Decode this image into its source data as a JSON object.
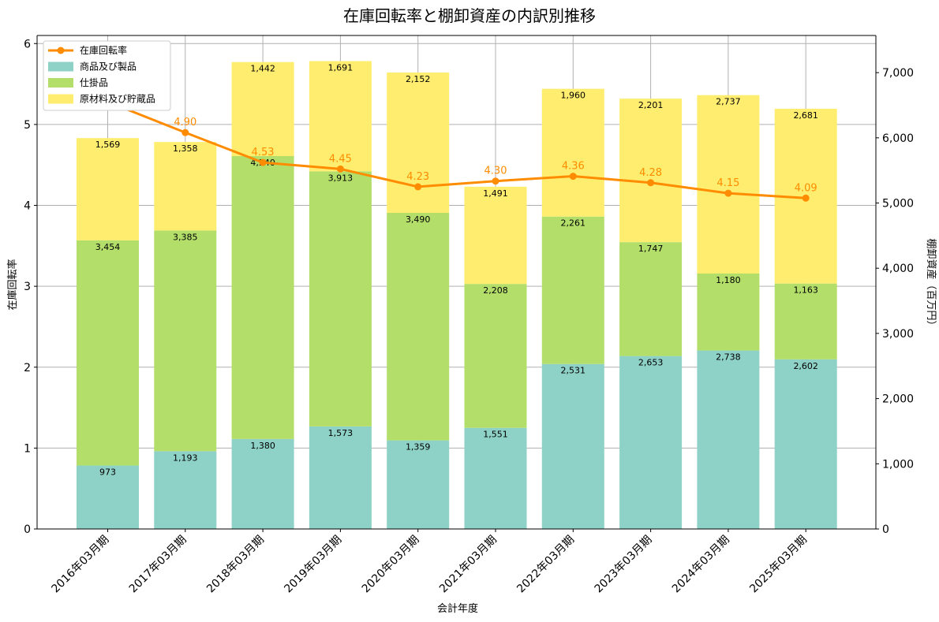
{
  "chart_data": {
    "type": "bar",
    "title": "在庫回転率と棚卸資産の内訳別推移",
    "xlabel": "会計年度",
    "ylabel_left": "在庫回転率",
    "ylabel_right": "棚卸資産（百万円）",
    "categories": [
      "2016年03月期",
      "2017年03月期",
      "2018年03月期",
      "2019年03月期",
      "2020年03月期",
      "2021年03月期",
      "2022年03月期",
      "2023年03月期",
      "2024年03月期",
      "2025年03月期"
    ],
    "ylim_left": [
      0,
      6.1
    ],
    "ylim_right": [
      0,
      7570
    ],
    "left_ticks": [
      "0",
      "1",
      "2",
      "3",
      "4",
      "5",
      "6"
    ],
    "right_ticks": [
      "0",
      "1,000",
      "2,000",
      "3,000",
      "4,000",
      "5,000",
      "6,000",
      "7,000"
    ],
    "grid": true,
    "legend_position": "top-left",
    "series": [
      {
        "name": "商品及び製品",
        "color": "#8ed1c6",
        "stacked": true,
        "axis": "right",
        "values": [
          973,
          1193,
          1380,
          1573,
          1359,
          1551,
          2531,
          2653,
          2738,
          2602
        ],
        "labels": [
          "973",
          "1,193",
          "1,380",
          "1,573",
          "1,359",
          "1,551",
          "2,531",
          "2,653",
          "2,738",
          "2,602"
        ]
      },
      {
        "name": "仕掛品",
        "color": "#b3de69",
        "stacked": true,
        "axis": "right",
        "values": [
          3454,
          3385,
          4340,
          3913,
          3490,
          2208,
          2261,
          1747,
          1180,
          1163
        ],
        "labels": [
          "3,454",
          "3,385",
          "4,340",
          "3,913",
          "3,490",
          "2,208",
          "2,261",
          "1,747",
          "1,180",
          "1,163"
        ]
      },
      {
        "name": "原材料及び貯蔵品",
        "color": "#ffed6f",
        "stacked": true,
        "axis": "right",
        "values": [
          1569,
          1358,
          1442,
          1691,
          2152,
          1491,
          1960,
          2201,
          2737,
          2681
        ],
        "labels": [
          "1,569",
          "1,358",
          "1,442",
          "1,691",
          "2,152",
          "1,491",
          "1,960",
          "2,201",
          "2,737",
          "2,681"
        ]
      },
      {
        "name": "在庫回転率",
        "color": "#ff8c00",
        "type": "line",
        "axis": "left",
        "values": [
          5.28,
          4.9,
          4.53,
          4.45,
          4.23,
          4.3,
          4.36,
          4.28,
          4.15,
          4.09
        ],
        "labels": [
          "",
          "4.90",
          "4.53",
          "4.45",
          "4.23",
          "4.30",
          "4.36",
          "4.28",
          "4.15",
          "4.09"
        ]
      }
    ]
  }
}
